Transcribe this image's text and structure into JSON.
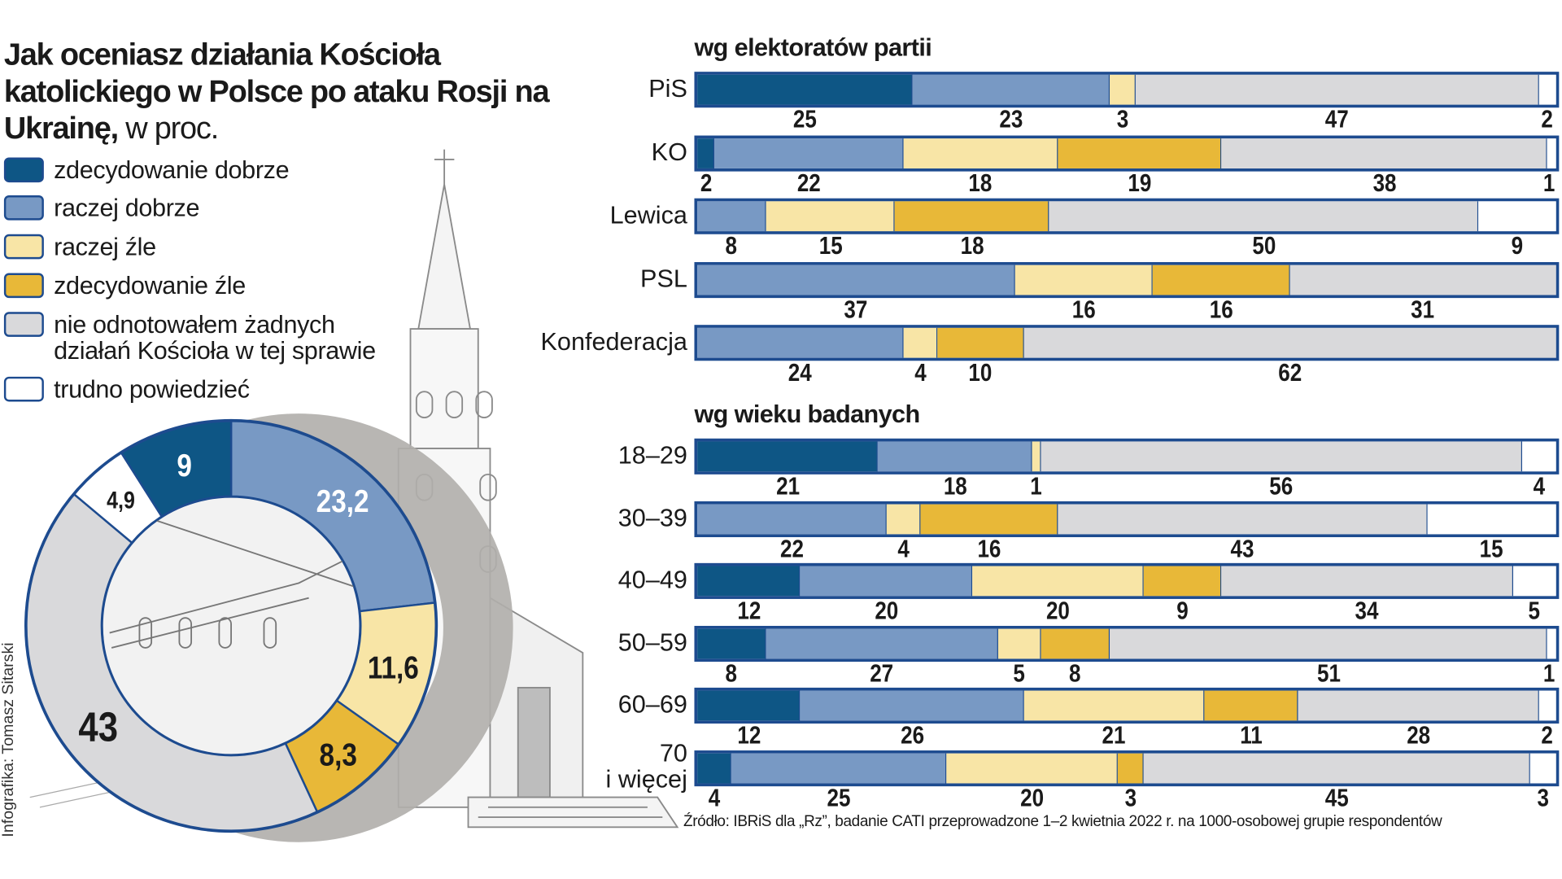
{
  "title": {
    "main": "Jak oceniasz działania Kościoła katolickiego w Polsce po ataku Rosji na Ukrainę,",
    "unit": " w proc."
  },
  "colors": {
    "zdecydowanie_dobrze": "#0e5685",
    "raczej_dobrze": "#7899c4",
    "raczej_zle": "#f8e5a6",
    "zdecydowanie_zle": "#e8b838",
    "nie_odnotowalem": "#d9d9db",
    "trudno": "#ffffff",
    "border": "#1d4b8f"
  },
  "legend": [
    {
      "label": "zdecydowanie dobrze",
      "color": "#0e5685"
    },
    {
      "label": "raczej dobrze",
      "color": "#7899c4"
    },
    {
      "label": "raczej źle",
      "color": "#f8e5a6"
    },
    {
      "label": "zdecydowanie źle",
      "color": "#e8b838"
    },
    {
      "label": "nie odnotowałem żadnych\ndziałań Kościoła w tej sprawie",
      "color": "#d9d9db"
    },
    {
      "label": "trudno powiedzieć",
      "color": "#ffffff"
    }
  ],
  "chart_data": [
    {
      "type": "pie",
      "donut": true,
      "order": "clockwise from top",
      "categories": [
        "raczej dobrze",
        "raczej źle",
        "zdecydowanie źle",
        "nie odnotowałem żadnych działań Kościoła w tej sprawie",
        "trudno powiedzieć",
        "zdecydowanie dobrze"
      ],
      "values": [
        23.2,
        11.6,
        8.3,
        43,
        4.9,
        9
      ],
      "labels": [
        "23,2",
        "11,6",
        "8,3",
        "43",
        "4,9",
        "9"
      ],
      "colors": [
        "#7899c4",
        "#f8e5a6",
        "#e8b838",
        "#d9d9db",
        "#ffffff",
        "#0e5685"
      ]
    },
    {
      "type": "bar",
      "orientation": "horizontal",
      "stacked": true,
      "title": "wg elektoratów partii",
      "series_order": [
        "zdecydowanie dobrze",
        "raczej dobrze",
        "raczej źle",
        "zdecydowanie źle",
        "nie odnotowałem żadnych działań Kościoła w tej sprawie",
        "trudno powiedzieć"
      ],
      "categories": [
        "PiS",
        "KO",
        "Lewica",
        "PSL",
        "Konfederacja"
      ],
      "values": [
        [
          25,
          23,
          3,
          0,
          47,
          2
        ],
        [
          2,
          22,
          18,
          19,
          38,
          1
        ],
        [
          0,
          8,
          15,
          18,
          50,
          9
        ],
        [
          0,
          37,
          16,
          16,
          31,
          0
        ],
        [
          0,
          24,
          4,
          10,
          62,
          0
        ]
      ]
    },
    {
      "type": "bar",
      "orientation": "horizontal",
      "stacked": true,
      "title": "wg wieku badanych",
      "series_order": [
        "zdecydowanie dobrze",
        "raczej dobrze",
        "raczej źle",
        "zdecydowanie źle",
        "nie odnotowałem żadnych działań Kościoła w tej sprawie",
        "trudno powiedzieć"
      ],
      "categories": [
        "18–29",
        "30–39",
        "40–49",
        "50–59",
        "60–69",
        "70\ni więcej"
      ],
      "values": [
        [
          21,
          18,
          1,
          0,
          56,
          4
        ],
        [
          0,
          22,
          4,
          16,
          43,
          15
        ],
        [
          12,
          20,
          20,
          9,
          34,
          5
        ],
        [
          8,
          27,
          5,
          8,
          51,
          1
        ],
        [
          12,
          26,
          21,
          11,
          28,
          2
        ],
        [
          4,
          25,
          20,
          3,
          45,
          3
        ]
      ]
    }
  ],
  "source": "Źródło: IBRiS dla „Rz”, badanie CATI przeprowadzone 1–2 kwietnia 2022 r. na 1000-osobowej grupie respondentów",
  "credit": "Infografika: Tomasz Sitarski"
}
